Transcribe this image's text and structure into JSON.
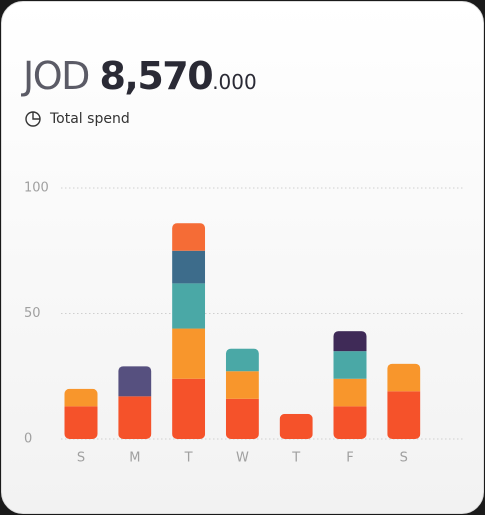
{
  "header": {
    "currency": "JOD",
    "amount": "8,570",
    "decimals": ".000",
    "subtitle": "Total spend"
  },
  "chart_data": {
    "type": "stacked-bar",
    "categories": [
      "S",
      "M",
      "T",
      "W",
      "T",
      "F",
      "S"
    ],
    "series": [
      {
        "color": "#f5522a",
        "values": [
          13,
          17,
          24,
          16,
          10,
          13,
          19
        ]
      },
      {
        "color": "#f8962c",
        "values": [
          7,
          null,
          20,
          11,
          null,
          11,
          11
        ]
      },
      {
        "color": "#4aa8a6",
        "values": [
          null,
          null,
          18,
          9,
          null,
          11,
          null
        ]
      },
      {
        "color": "#3d6c8b",
        "values": [
          null,
          null,
          13,
          null,
          null,
          null,
          null
        ]
      },
      {
        "color": "#56507f",
        "values": [
          null,
          12,
          null,
          null,
          null,
          null,
          null
        ]
      },
      {
        "color": "#3f2a57",
        "values": [
          null,
          null,
          null,
          null,
          null,
          8,
          null
        ]
      },
      {
        "color": "#f56c36",
        "values": [
          null,
          null,
          11,
          null,
          null,
          null,
          null
        ]
      }
    ],
    "ylim": [
      0,
      100
    ],
    "yticks": [
      0,
      50,
      100
    ],
    "grid": true
  }
}
